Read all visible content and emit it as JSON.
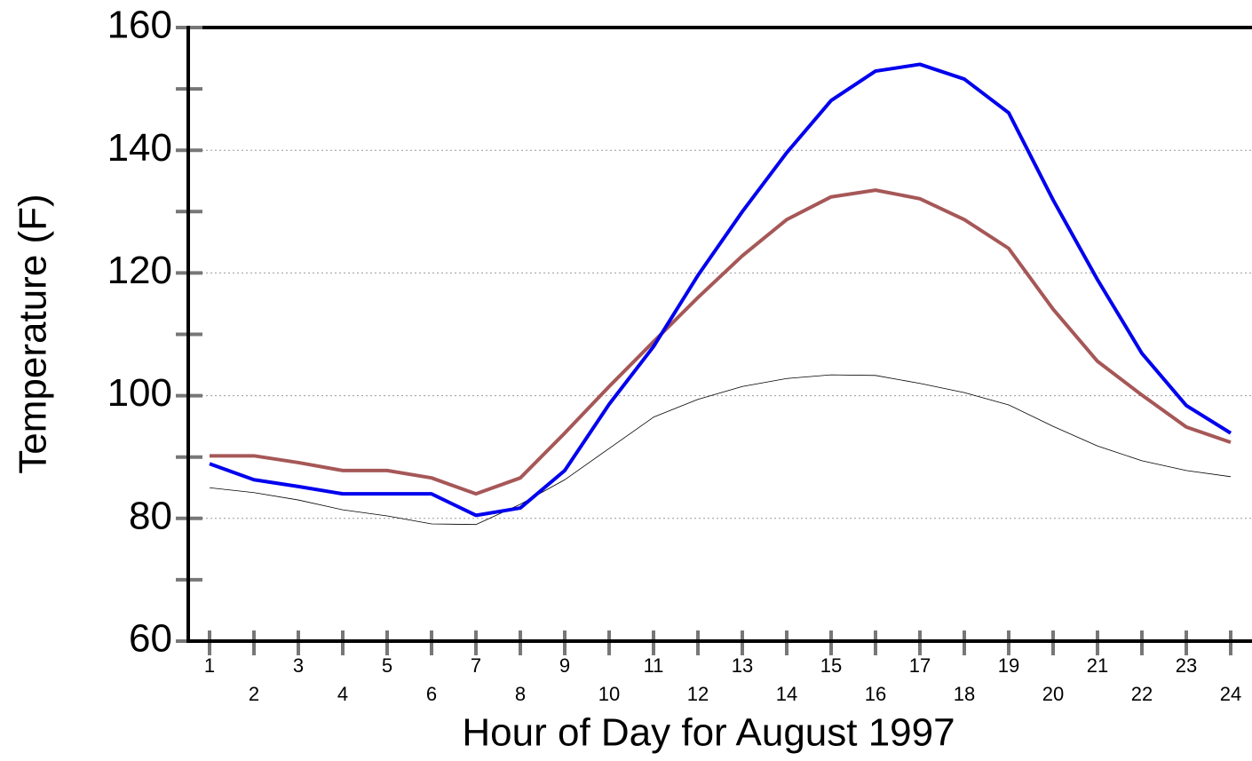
{
  "chart_data": {
    "type": "line",
    "x_label": "Hour of Day for August 1997",
    "y_label": "Temperature (F)",
    "x": [
      1,
      2,
      3,
      4,
      5,
      6,
      7,
      8,
      9,
      10,
      11,
      12,
      13,
      14,
      15,
      16,
      17,
      18,
      19,
      20,
      21,
      22,
      23,
      24
    ],
    "xlim": [
      0.52,
      24.48
    ],
    "xticks": [
      1,
      2,
      3,
      4,
      5,
      6,
      7,
      8,
      9,
      10,
      11,
      12,
      13,
      14,
      15,
      16,
      17,
      18,
      19,
      20,
      21,
      22,
      23,
      24
    ],
    "ylim": [
      60,
      160
    ],
    "yticks": [
      60,
      80,
      100,
      120,
      140,
      160
    ],
    "yticks_minor": [
      70,
      90,
      110,
      130,
      150
    ],
    "grid": true,
    "series": [
      {
        "color": "#0000ee",
        "width": 4,
        "values": [
          88.9,
          86.3,
          85.2,
          84,
          84,
          84,
          80.5,
          81.7,
          87.8,
          98.6,
          108,
          119.6,
          130,
          139.6,
          148.1,
          152.9,
          154,
          151.6,
          146.1,
          131.9,
          118.9,
          106.9,
          98.4,
          93.9
        ]
      },
      {
        "color": "#a65757",
        "width": 4,
        "values": [
          90.2,
          90.2,
          89.1,
          87.8,
          87.8,
          86.6,
          84,
          86.6,
          93.9,
          101.5,
          108.8,
          116,
          122.8,
          128.7,
          132.4,
          133.5,
          132.1,
          128.7,
          124,
          114.1,
          105.6,
          100.1,
          94.9,
          92.4
        ]
      },
      {
        "color": "#000000",
        "width": 0.8,
        "values": [
          85,
          84.2,
          83,
          81.4,
          80.4,
          79.1,
          79,
          82.3,
          86.3,
          91.4,
          96.5,
          99.4,
          101.5,
          102.8,
          103.4,
          103.3,
          102,
          100.5,
          98.5,
          95,
          91.8,
          89.4,
          87.8,
          86.8
        ]
      }
    ]
  }
}
